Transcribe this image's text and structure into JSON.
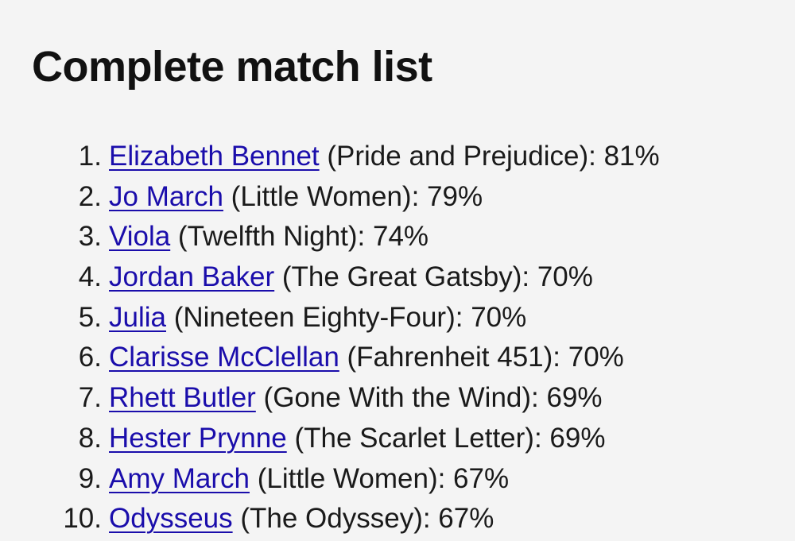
{
  "title": "Complete match list",
  "matches": [
    {
      "rank": "1.",
      "name": "Elizabeth Bennet",
      "rest": " (Pride and Prejudice): 81%"
    },
    {
      "rank": "2.",
      "name": "Jo March",
      "rest": " (Little Women): 79%"
    },
    {
      "rank": "3.",
      "name": "Viola",
      "rest": " (Twelfth Night): 74%"
    },
    {
      "rank": "4.",
      "name": "Jordan Baker",
      "rest": " (The Great Gatsby): 70%"
    },
    {
      "rank": "5.",
      "name": "Julia",
      "rest": " (Nineteen Eighty-Four): 70%"
    },
    {
      "rank": "6.",
      "name": "Clarisse McClellan",
      "rest": " (Fahrenheit 451): 70%"
    },
    {
      "rank": "7.",
      "name": "Rhett Butler",
      "rest": " (Gone With the Wind): 69%"
    },
    {
      "rank": "8.",
      "name": "Hester Prynne",
      "rest": " (The Scarlet Letter): 69%"
    },
    {
      "rank": "9.",
      "name": "Amy March",
      "rest": " (Little Women): 67%"
    },
    {
      "rank": "10.",
      "name": "Odysseus",
      "rest": " (The Odyssey): 67%"
    }
  ],
  "colors": {
    "link": "#1a0dab",
    "background": "#f4f4f4"
  }
}
